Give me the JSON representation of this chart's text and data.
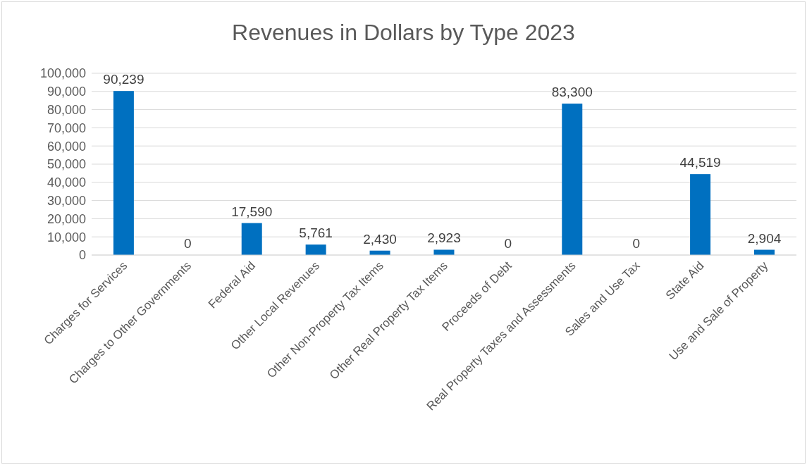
{
  "chart_data": {
    "type": "bar",
    "title": "Revenues in Dollars by Type 2023",
    "categories": [
      "Charges for Services",
      "Charges to Other Governments",
      "Federal Aid",
      "Other Local Revenues",
      "Other Non-Property Tax Items",
      "Other Real Property Tax Items",
      "Proceeds of Debt",
      "Real Property Taxes and Assessments",
      "Sales and Use Tax",
      "State Aid",
      "Use and Sale of Property"
    ],
    "values": [
      90239,
      0,
      17590,
      5761,
      2430,
      2923,
      0,
      83300,
      0,
      44519,
      2904
    ],
    "value_labels": [
      "90,239",
      "0",
      "17,590",
      "5,761",
      "2,430",
      "2,923",
      "0",
      "83,300",
      "0",
      "44,519",
      "2,904"
    ],
    "color": "#0070c0",
    "ylim": [
      0,
      100000
    ],
    "yticks": [
      0,
      {
        "value": 10000,
        "label": "10,000"
      },
      {
        "value": 20000,
        "label": "20,000"
      },
      {
        "value": 30000,
        "label": "30,000"
      },
      {
        "value": 40000,
        "label": "40,000"
      },
      {
        "value": 50000,
        "label": "50,000"
      },
      {
        "value": 60000,
        "label": "60,000"
      },
      {
        "value": 70000,
        "label": "70,000"
      },
      {
        "value": 80000,
        "label": "80,000"
      },
      {
        "value": 90000,
        "label": "90,000"
      },
      {
        "value": 100000,
        "label": "100,000"
      }
    ],
    "grid": "y"
  }
}
